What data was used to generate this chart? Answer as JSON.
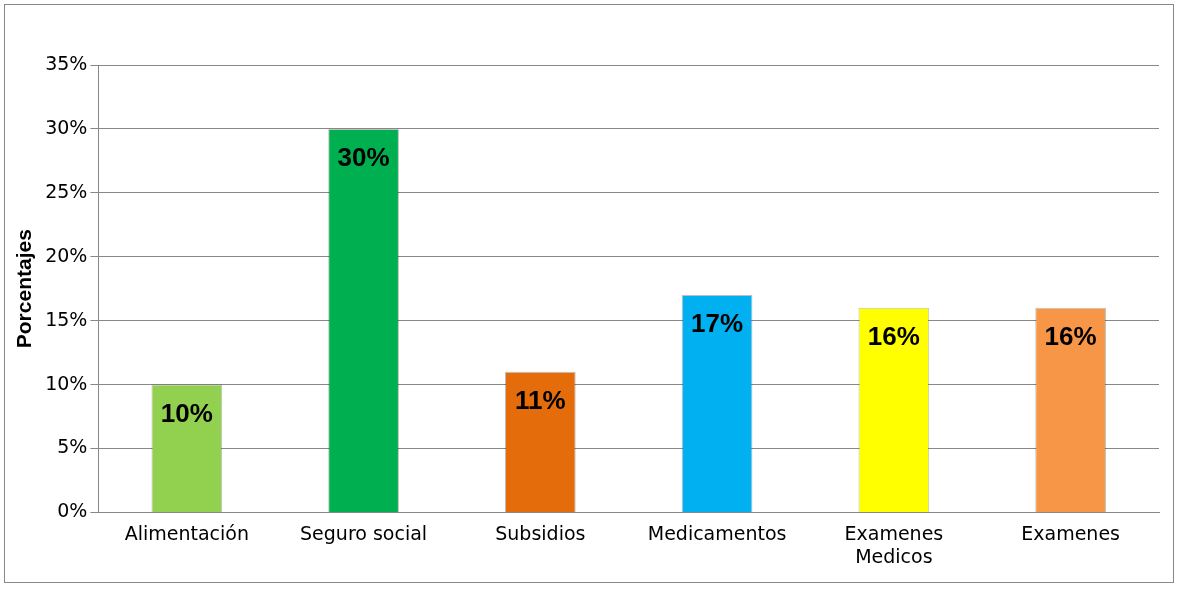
{
  "chart_data": {
    "type": "bar",
    "ylabel": "Porcentajes",
    "categories": [
      "Alimentación",
      "Seguro social",
      "Subsidios",
      "Medicamentos",
      "Examenes\nMedicos",
      "Examenes"
    ],
    "values": [
      10,
      30,
      11,
      17,
      16,
      16
    ],
    "value_labels": [
      "10%",
      "30%",
      "11%",
      "17%",
      "16%",
      "16%"
    ],
    "colors": [
      "#92d050",
      "#00b050",
      "#e46c0a",
      "#00b0f0",
      "#ffff00",
      "#f79646"
    ],
    "ylim": [
      0,
      35
    ],
    "yticks": [
      {
        "value": 0,
        "label": "0%"
      },
      {
        "value": 5,
        "label": "5%"
      },
      {
        "value": 10,
        "label": "10%"
      },
      {
        "value": 15,
        "label": "15%"
      },
      {
        "value": 20,
        "label": "20%"
      },
      {
        "value": 25,
        "label": "25%"
      },
      {
        "value": 30,
        "label": "30%"
      },
      {
        "value": 35,
        "label": "35%"
      }
    ],
    "grid": "y",
    "legend": false
  }
}
